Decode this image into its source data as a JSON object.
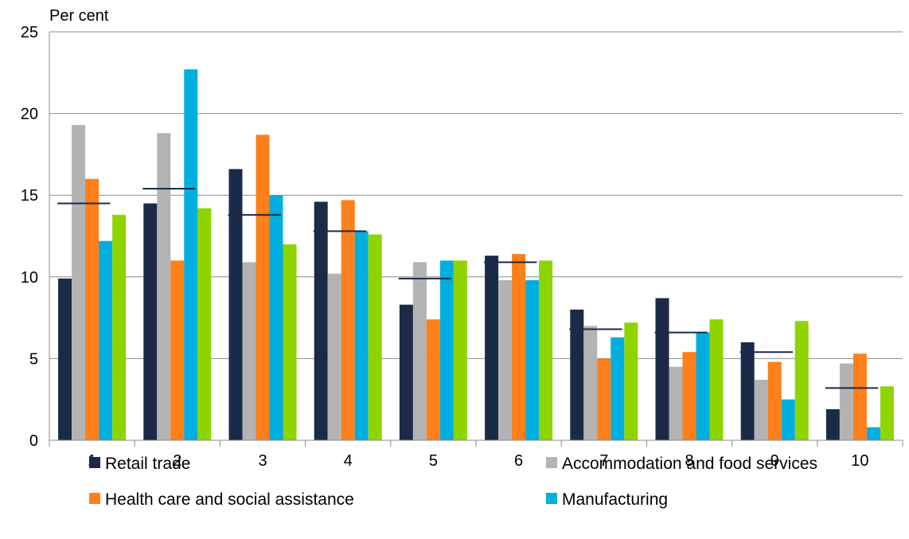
{
  "chart_data": {
    "type": "bar",
    "ylabel": "Per cent",
    "xlabel": "",
    "ylim": [
      0,
      25
    ],
    "yticks": [
      0,
      5,
      10,
      15,
      20,
      25
    ],
    "grid": true,
    "legend_position": "bottom",
    "categories": [
      "1",
      "2",
      "3",
      "4",
      "5",
      "6",
      "7",
      "8",
      "9",
      "10"
    ],
    "series": [
      {
        "name": "Retail trade",
        "color": "#1b2a47",
        "values": [
          9.9,
          14.5,
          16.6,
          14.6,
          8.3,
          11.3,
          8.0,
          8.7,
          6.0,
          1.9
        ]
      },
      {
        "name": "Accommodation and food services",
        "color": "#b3b3b3",
        "values": [
          19.3,
          18.8,
          10.9,
          10.2,
          10.9,
          9.8,
          7.0,
          4.5,
          3.7,
          4.7
        ]
      },
      {
        "name": "Health care and social assistance",
        "color": "#ff7f1a",
        "values": [
          16.0,
          11.0,
          18.7,
          14.7,
          7.4,
          11.4,
          5.0,
          5.4,
          4.8,
          5.3
        ]
      },
      {
        "name": "Manufacturing",
        "color": "#00aedf",
        "values": [
          12.2,
          22.7,
          15.0,
          12.8,
          11.0,
          9.8,
          6.3,
          6.6,
          2.5,
          0.8
        ]
      },
      {
        "name": "",
        "color": "#8fd400",
        "values": [
          13.8,
          14.2,
          12.0,
          12.6,
          11.0,
          11.0,
          7.2,
          7.4,
          7.3,
          3.3
        ]
      }
    ],
    "averages": {
      "color": "#1b2a47",
      "values": [
        14.5,
        15.4,
        13.8,
        12.8,
        9.9,
        10.9,
        6.8,
        6.6,
        5.4,
        3.2
      ]
    }
  }
}
